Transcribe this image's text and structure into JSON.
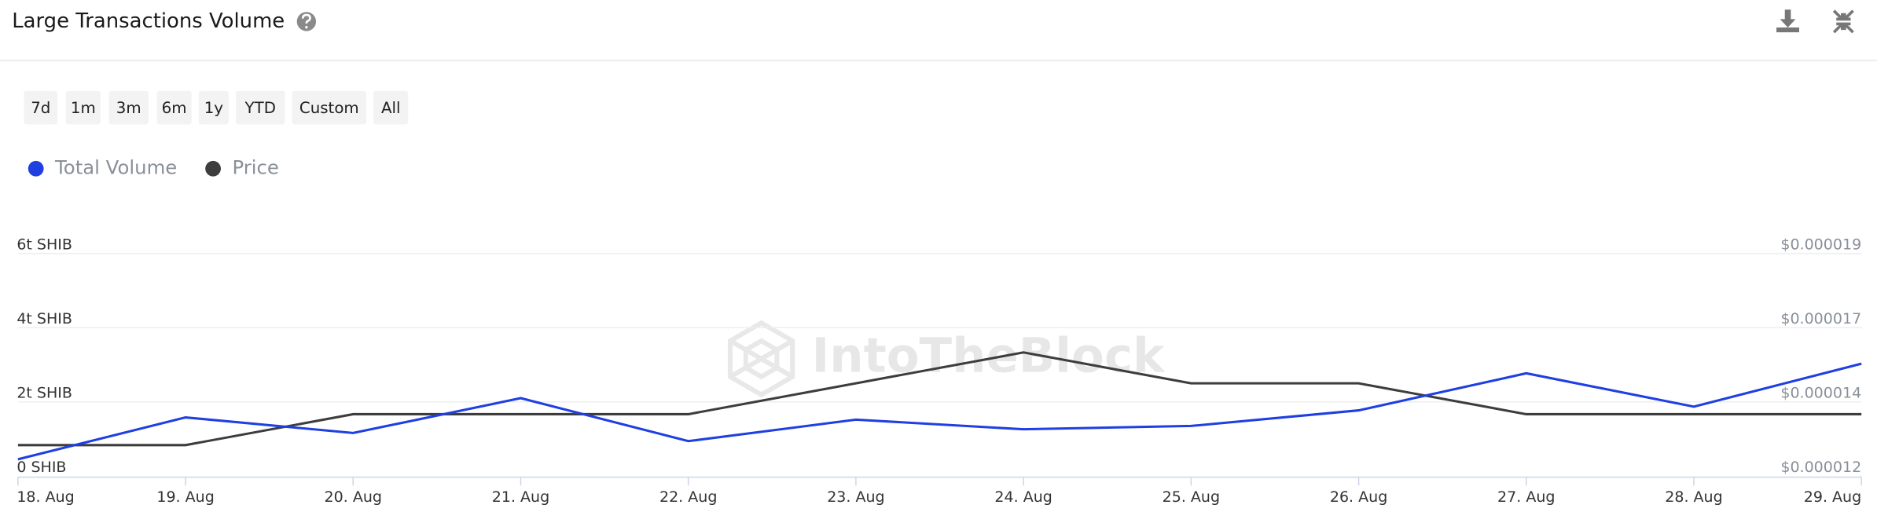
{
  "header": {
    "title": "Large Transactions Volume"
  },
  "range_buttons": [
    "7d",
    "1m",
    "3m",
    "6m",
    "1y",
    "YTD",
    "Custom",
    "All"
  ],
  "watermark": "IntoTheBlock",
  "chart_data": {
    "type": "line",
    "categories": [
      "18. Aug",
      "19. Aug",
      "20. Aug",
      "21. Aug",
      "22. Aug",
      "23. Aug",
      "24. Aug",
      "25. Aug",
      "26. Aug",
      "27. Aug",
      "28. Aug",
      "29. Aug"
    ],
    "series": [
      {
        "name": "Total Volume",
        "color": "#1f3fe0",
        "values": [
          0.45,
          1.58,
          1.16,
          2.1,
          0.94,
          1.52,
          1.26,
          1.35,
          1.77,
          2.77,
          1.87,
          3.03
        ]
      },
      {
        "name": "Price",
        "color": "#3d3d3d",
        "axis": "y2",
        "values": [
          1.3e-05,
          1.3e-05,
          1.4e-05,
          1.4e-05,
          1.4e-05,
          1.5e-05,
          1.6e-05,
          1.5e-05,
          1.5e-05,
          1.4e-05,
          1.4e-05,
          1.4e-05
        ]
      }
    ],
    "ylim": [
      0,
      6
    ],
    "yticks": [
      {
        "value": 0,
        "label": "0 SHIB"
      },
      {
        "value": 2,
        "label": "2t SHIB"
      },
      {
        "value": 4,
        "label": "4t SHIB"
      },
      {
        "value": 6,
        "label": "6t SHIB"
      }
    ],
    "y2lim": [
      1.2e-05,
      1.92e-05
    ],
    "y2ticks": [
      {
        "value": 1.2e-05,
        "label": "$0.000012"
      },
      {
        "value": 1.44e-05,
        "label": "$0.000014"
      },
      {
        "value": 1.68e-05,
        "label": "$0.000017"
      },
      {
        "value": 1.92e-05,
        "label": "$0.000019"
      }
    ],
    "grid": true
  }
}
